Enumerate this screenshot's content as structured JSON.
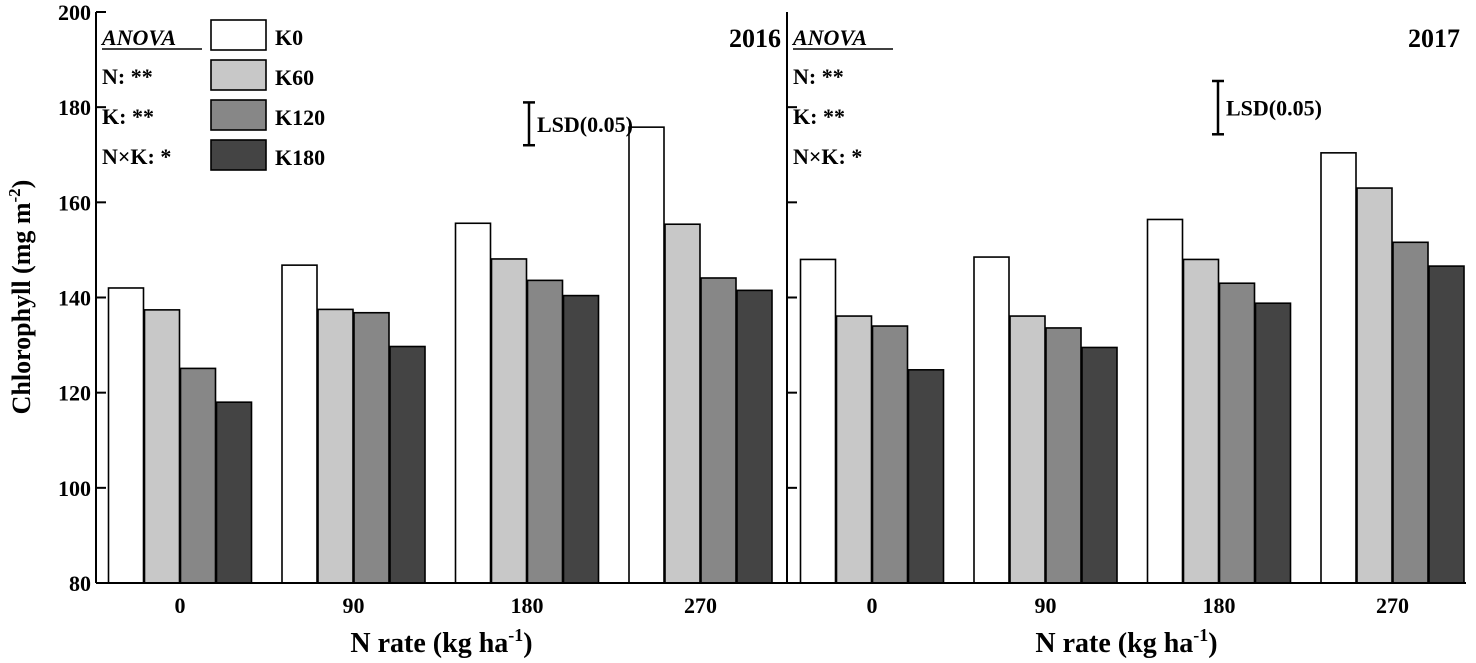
{
  "chart_data": {
    "type": "bar",
    "ylabel": "Chlorophyll (mg m",
    "ylabel_sup": "-2",
    "ylabel_tail": ")",
    "ylim": [
      80,
      200
    ],
    "yticks": [
      80,
      100,
      120,
      140,
      160,
      180,
      200
    ],
    "legend": {
      "placement": "top-left",
      "entries": [
        {
          "name": "K0",
          "color": "#ffffff"
        },
        {
          "name": "K60",
          "color": "#c8c8c8"
        },
        {
          "name": "K120",
          "color": "#878787"
        },
        {
          "name": "K180",
          "color": "#444444"
        }
      ]
    },
    "panels": [
      {
        "title": "2016",
        "categories": [
          "0",
          "90",
          "180",
          "270"
        ],
        "xlabel": "N rate (kg ha",
        "xlabel_sup": "-1",
        "xlabel_tail": ")",
        "anova": {
          "heading": "ANOVA",
          "lines": [
            "N: **",
            "K: **",
            "N×K: *"
          ]
        },
        "lsd": {
          "label": "LSD(0.05)",
          "low": 172,
          "high": 181
        },
        "series": [
          {
            "name": "K0",
            "values": [
              142,
              146.8,
              155.6,
              175.8
            ]
          },
          {
            "name": "K60",
            "values": [
              137.4,
              137.5,
              148.1,
              155.4
            ]
          },
          {
            "name": "K120",
            "values": [
              125.1,
              136.8,
              143.6,
              144.1
            ]
          },
          {
            "name": "K180",
            "values": [
              118,
              129.7,
              140.4,
              141.5
            ]
          }
        ]
      },
      {
        "title": "2017",
        "categories": [
          "0",
          "90",
          "180",
          "270"
        ],
        "xlabel": "N rate (kg ha",
        "xlabel_sup": "-1",
        "xlabel_tail": ")",
        "anova": {
          "heading": "ANOVA",
          "lines": [
            "N: **",
            "K: **",
            "N×K: *"
          ]
        },
        "lsd": {
          "label": "LSD(0.05)",
          "low": 174.3,
          "high": 185.5
        },
        "series": [
          {
            "name": "K0",
            "values": [
              148,
              148.5,
              156.4,
              170.4
            ]
          },
          {
            "name": "K60",
            "values": [
              136.1,
              136.1,
              148,
              163
            ]
          },
          {
            "name": "K120",
            "values": [
              134,
              133.6,
              143,
              151.6
            ]
          },
          {
            "name": "K180",
            "values": [
              124.8,
              129.5,
              138.8,
              146.6
            ]
          }
        ]
      }
    ]
  }
}
